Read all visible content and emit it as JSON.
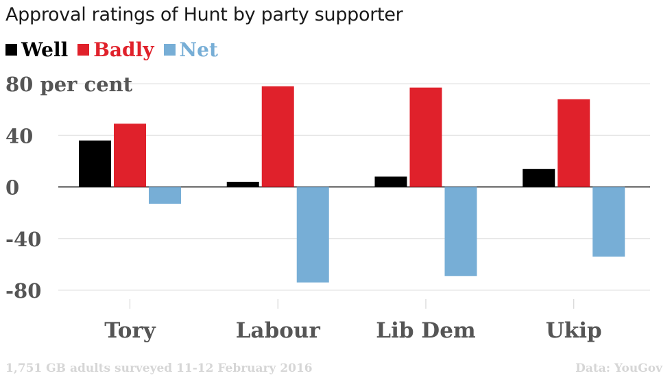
{
  "title": "Approval ratings of Hunt by party supporter",
  "footer": {
    "note": "1,751 GB adults surveyed 11-12 February 2016",
    "source": "Data: YouGov"
  },
  "colors": {
    "well": "#000000",
    "badly": "#e0212b",
    "net": "#77aed6",
    "grid": "#dddddd",
    "axis_text": "#555555"
  },
  "chart_data": {
    "type": "bar",
    "categories": [
      "Tory",
      "Labour",
      "Lib Dem",
      "Ukip"
    ],
    "series": [
      {
        "name": "Well",
        "values": [
          36,
          4,
          8,
          14
        ]
      },
      {
        "name": "Badly",
        "values": [
          49,
          78,
          77,
          68
        ]
      },
      {
        "name": "Net",
        "values": [
          -13,
          -74,
          -69,
          -54
        ]
      }
    ],
    "ylim": [
      -80,
      80
    ],
    "yticks": [
      80,
      40,
      0,
      -40,
      -80
    ],
    "ytick_labels": [
      "80 per cent",
      "40",
      "0",
      "-40",
      "-80"
    ],
    "legend_position": "top-left",
    "grid": true
  }
}
